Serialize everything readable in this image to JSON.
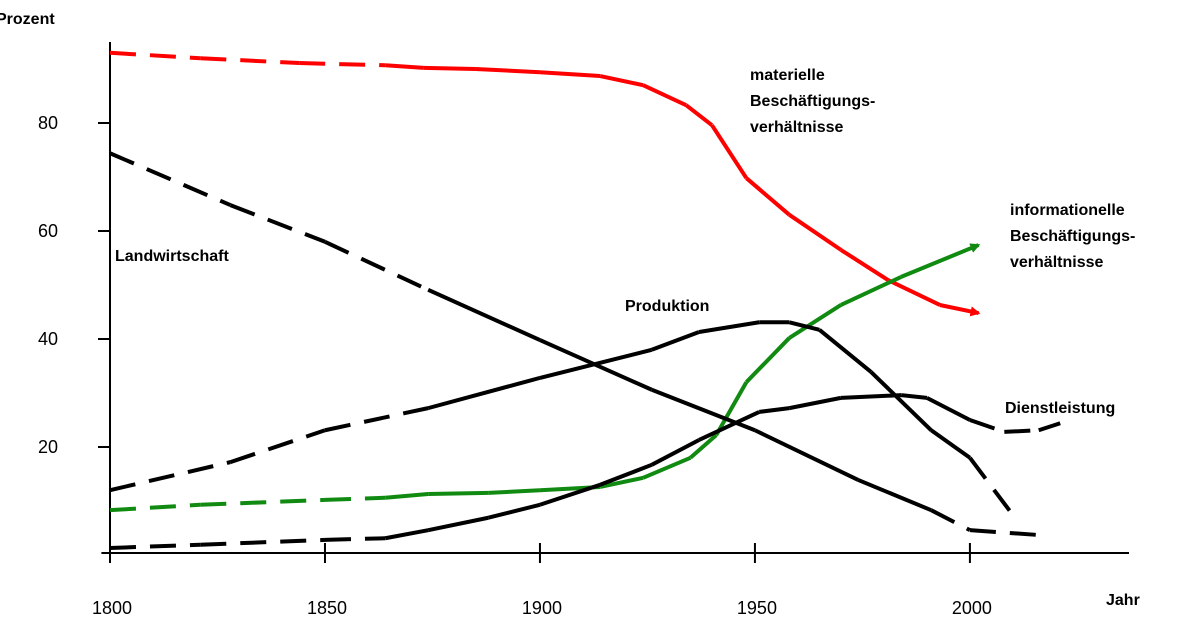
{
  "chart_data": {
    "type": "line",
    "y_label": "Prozent",
    "x_label": "Jahr",
    "xlim": [
      1798,
      2037
    ],
    "ylim": [
      0,
      95
    ],
    "xticks": [
      1800,
      1850,
      1900,
      1950,
      2000
    ],
    "yticks": [
      20,
      40,
      60,
      80
    ],
    "series": [
      {
        "name": "materielle Beschäftigungs- verhältnisse",
        "lines": [
          "materielle",
          "Beschäftigungs-",
          "verhältnisse"
        ],
        "color": "#ff0000",
        "arrow": true,
        "dash_before": 1865,
        "x": [
          1800,
          1821,
          1844,
          1864,
          1873,
          1885,
          1900,
          1914,
          1924,
          1934,
          1940,
          1948,
          1958,
          1970,
          1981,
          1993,
          2002
        ],
        "values": [
          93.0,
          92.0,
          91.1,
          90.7,
          90.2,
          90.0,
          89.4,
          88.7,
          87.0,
          83.3,
          79.6,
          69.8,
          63.0,
          56.5,
          50.9,
          46.3,
          44.8
        ]
      },
      {
        "name": "informationelle Beschäftigungs- verhältnisse",
        "lines": [
          "informationelle",
          "Beschäftigungs-",
          "verhältnisse"
        ],
        "color": "#108a10",
        "arrow": true,
        "dash_before": 1865,
        "x": [
          1800,
          1821,
          1850,
          1864,
          1874,
          1888,
          1900,
          1914,
          1924,
          1935,
          1941,
          1948,
          1958,
          1970,
          1984,
          2002
        ],
        "values": [
          8.3,
          9.3,
          10.2,
          10.6,
          11.3,
          11.5,
          12.0,
          12.6,
          14.3,
          18.0,
          22.2,
          32.0,
          40.2,
          46.3,
          51.5,
          57.4
        ]
      },
      {
        "name": "Landwirtschaft",
        "color": "#000000",
        "arrow": false,
        "dash_before": 1875,
        "dash_after": 1991,
        "x": [
          1800,
          1828,
          1850,
          1874,
          1900,
          1926,
          1950,
          1974,
          1991,
          2000,
          2016
        ],
        "values": [
          74.4,
          64.8,
          58.0,
          49.1,
          39.8,
          30.6,
          23.1,
          13.9,
          8.3,
          4.6,
          3.7
        ]
      },
      {
        "name": "Produktion",
        "color": "#000000",
        "arrow": false,
        "dash_before": 1874,
        "dash_after": 2000,
        "x": [
          1800,
          1828,
          1850,
          1874,
          1900,
          1926,
          1937,
          1951,
          1958,
          1965,
          1977,
          1991,
          2000,
          2010
        ],
        "values": [
          12.0,
          17.2,
          23.1,
          27.2,
          32.8,
          38.0,
          41.3,
          43.1,
          43.1,
          41.7,
          33.9,
          23.1,
          18.0,
          7.4
        ]
      },
      {
        "name": "Dienstleistung",
        "color": "#000000",
        "arrow": false,
        "dash_before": 1864,
        "dash_after": 2000,
        "x": [
          1800,
          1821,
          1850,
          1864,
          1874,
          1888,
          1900,
          1914,
          1926,
          1937,
          1951,
          1958,
          1970,
          1984,
          1990,
          2000,
          2008,
          2016,
          2021
        ],
        "values": [
          1.3,
          1.9,
          2.8,
          3.1,
          4.6,
          6.9,
          9.3,
          13.0,
          16.7,
          21.3,
          26.5,
          27.2,
          29.1,
          29.6,
          29.1,
          25.0,
          22.8,
          23.1,
          24.4
        ]
      }
    ]
  }
}
